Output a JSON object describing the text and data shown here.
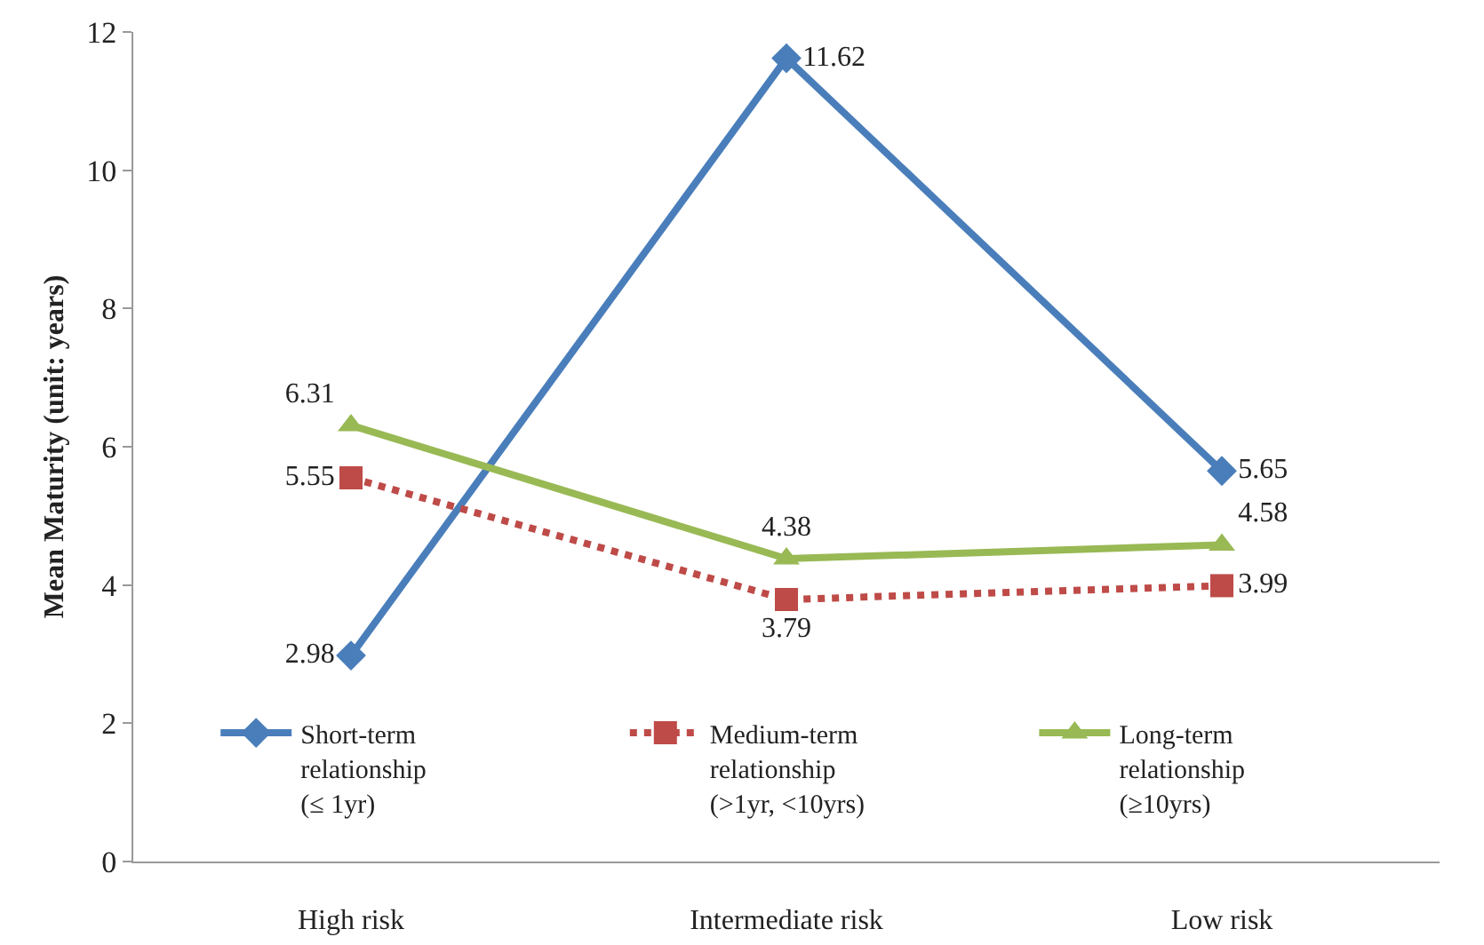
{
  "chart_data": {
    "type": "line",
    "ylabel": "Mean Maturity (unit: years)",
    "categories": [
      "High risk",
      "Intermediate risk",
      "Low risk"
    ],
    "series": [
      {
        "name": "Short-term relationship (≤ 1yr)",
        "color": "#4a7ebb",
        "values": [
          2.98,
          11.62,
          5.65
        ],
        "marker": "diamond",
        "line_style": "solid"
      },
      {
        "name": "Medium-term relationship (>1yr, <10yrs)",
        "color": "#be4b48",
        "values": [
          5.55,
          3.79,
          3.99
        ],
        "marker": "square",
        "line_style": "dotted"
      },
      {
        "name": "Long-term relationship (≥10yrs)",
        "color": "#98b954",
        "values": [
          6.31,
          4.38,
          4.58
        ],
        "marker": "triangle",
        "line_style": "solid"
      }
    ],
    "ylim": [
      0,
      12
    ],
    "yticks": [
      0,
      2,
      4,
      6,
      8,
      10,
      12
    ],
    "grid": false,
    "legend": "bottom",
    "data_labels": true
  }
}
